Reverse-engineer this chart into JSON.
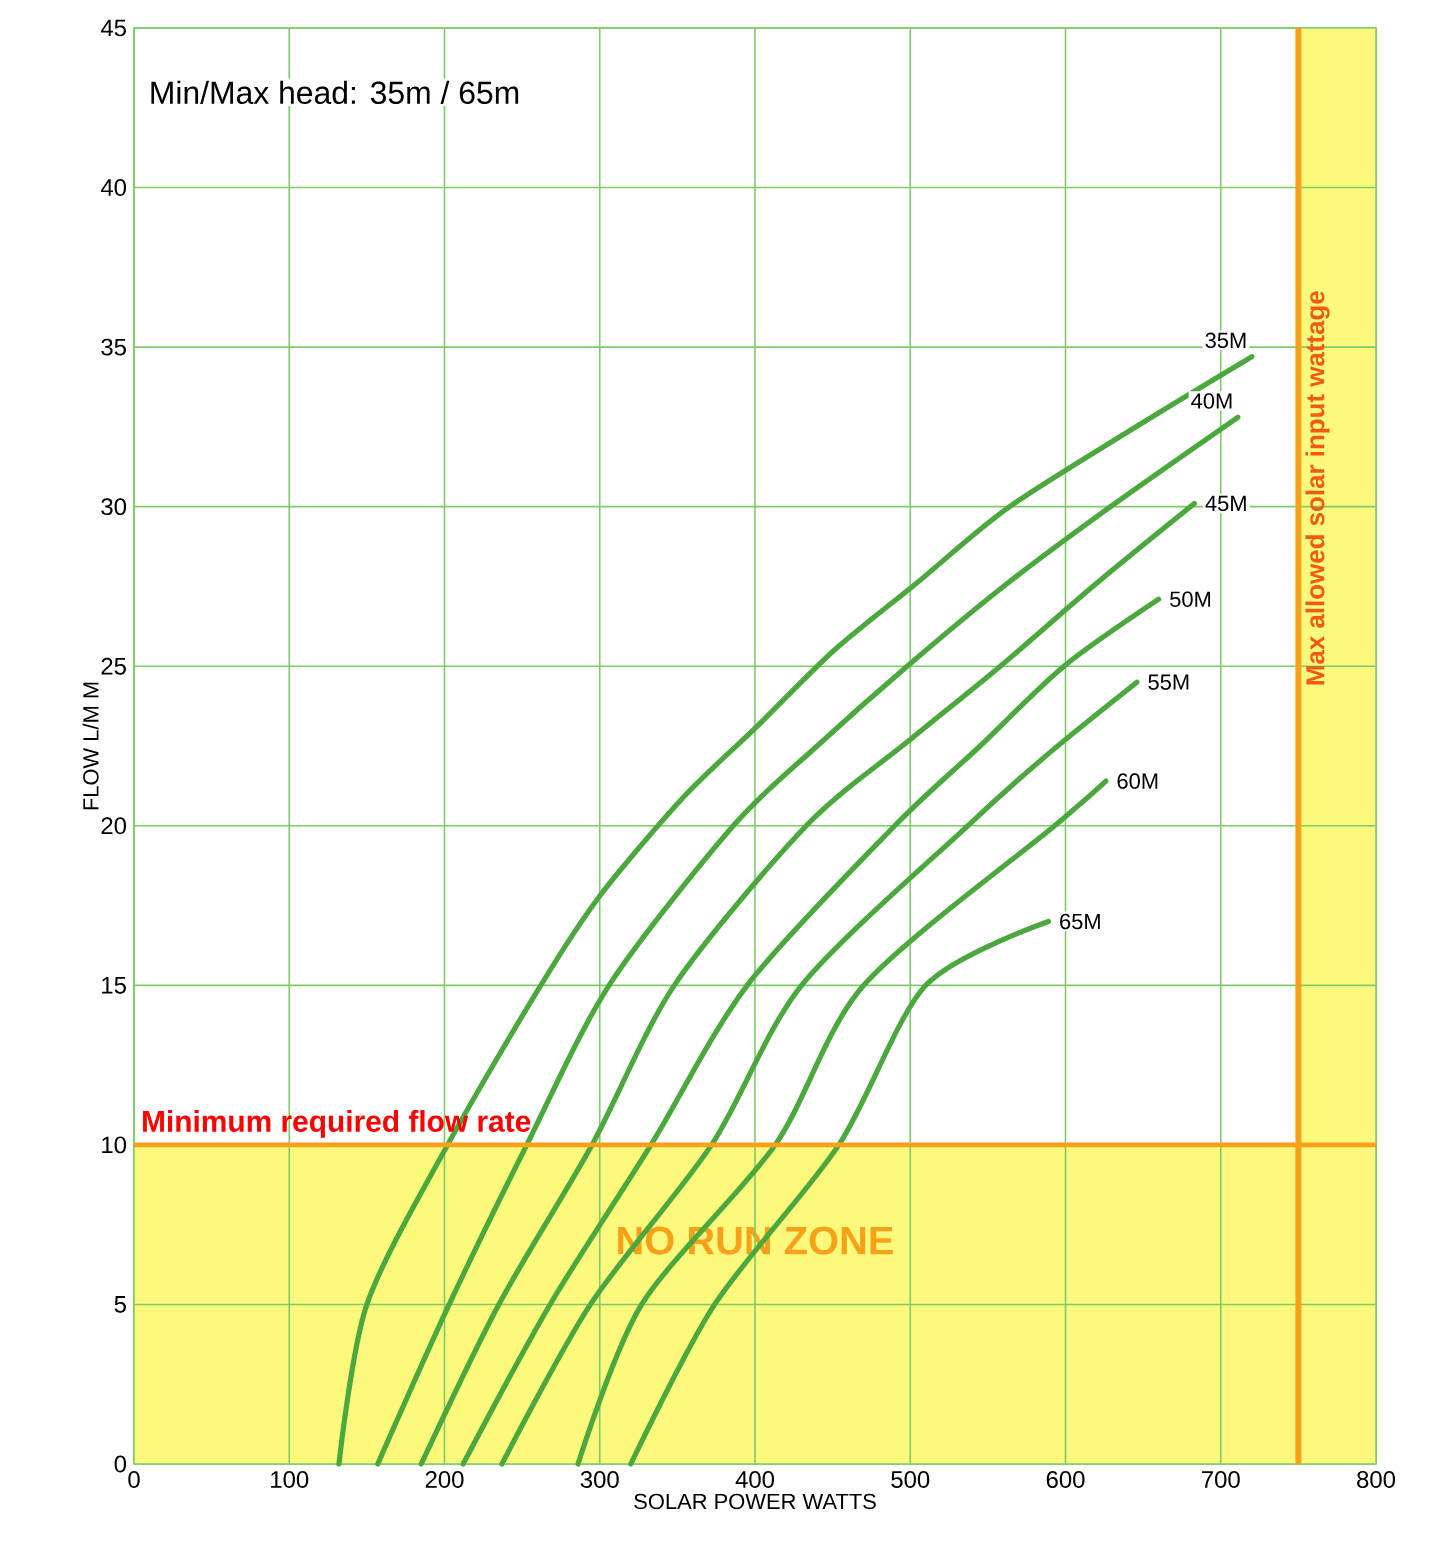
{
  "chart_data": {
    "type": "line",
    "xlabel": "SOLAR POWER WATTS",
    "ylabel": "FLOW L/M M",
    "annotations": [
      "Min/Max head: 35m / 65m"
    ],
    "series": [
      {
        "name": "35M",
        "color": "#4aa83c",
        "x": [
          132,
          150,
          202,
          262,
          300,
          354,
          401,
          451,
          504,
          564,
          652,
          720
        ],
        "values": [
          0,
          5,
          10,
          15,
          17.8,
          20.9,
          23.1,
          25.5,
          27.6,
          30,
          32.7,
          34.7
        ]
      },
      {
        "name": "40M",
        "color": "#4aa83c",
        "x": [
          157,
          203,
          253,
          306,
          386,
          440,
          498,
          560,
          629,
          711
        ],
        "values": [
          0,
          5,
          10,
          15,
          20,
          22.5,
          25,
          27.5,
          30,
          32.8
        ]
      },
      {
        "name": "45M",
        "color": "#4aa83c",
        "x": [
          185,
          235,
          295,
          348,
          433,
          500,
          558,
          620,
          683
        ],
        "values": [
          0,
          5,
          10,
          15,
          20,
          22.7,
          25,
          27.6,
          30.1
        ]
      },
      {
        "name": "50M",
        "color": "#4aa83c",
        "x": [
          212,
          268,
          333,
          395,
          490,
          545,
          599,
          660
        ],
        "values": [
          0,
          5,
          10,
          15,
          20,
          22.5,
          25,
          27.1
        ]
      },
      {
        "name": "55M",
        "color": "#4aa83c",
        "x": [
          237,
          294,
          372,
          430,
          537,
          590,
          646
        ],
        "values": [
          0,
          5,
          10,
          15,
          20,
          22.3,
          24.5
        ]
      },
      {
        "name": "60M",
        "color": "#4aa83c",
        "x": [
          286,
          327,
          413,
          470,
          593,
          626
        ],
        "values": [
          0,
          5,
          10,
          15,
          20,
          21.4
        ]
      },
      {
        "name": "65M",
        "color": "#4aa83c",
        "x": [
          320,
          374,
          454,
          510,
          589
        ],
        "values": [
          0,
          5,
          10,
          15,
          17
        ]
      }
    ],
    "xlim": [
      0,
      800
    ],
    "ylim": [
      0,
      45
    ],
    "xticks": [
      0,
      100,
      200,
      300,
      400,
      500,
      600,
      700,
      800
    ],
    "yticks": [
      0,
      5,
      10,
      15,
      20,
      25,
      30,
      35,
      40,
      45
    ],
    "grid": true,
    "marker": "none",
    "line_style": "solid",
    "bands": [
      {
        "axis": "y",
        "from": 0,
        "to": 10,
        "label": "NO RUN ZONE",
        "color": "#fdf97c"
      },
      {
        "axis": "x",
        "from": 750,
        "to": 800,
        "color": "#fdf97c"
      }
    ],
    "ref_lines": [
      {
        "axis": "y",
        "value": 10,
        "label": "Minimum required flow rate",
        "color": "#f7a11a"
      },
      {
        "axis": "x",
        "value": 750,
        "label": "Max allowed solar input wattage",
        "color": "#f7a11a"
      }
    ]
  }
}
